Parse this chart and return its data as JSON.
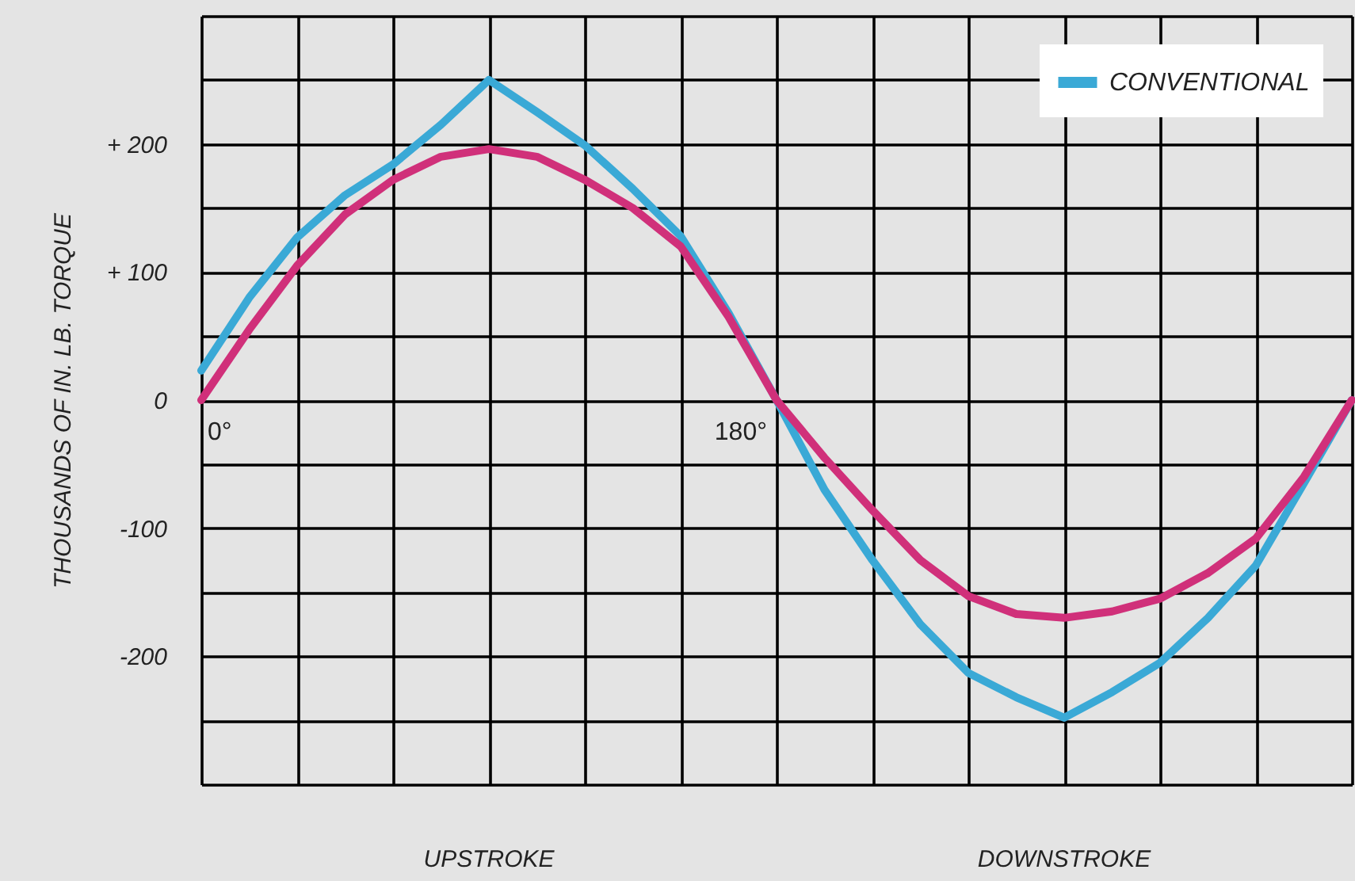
{
  "chart_data": {
    "type": "line",
    "ylabel": "THOUSANDS OF IN. LB. TORQUE",
    "categories": [
      null,
      null,
      null,
      null,
      null,
      null,
      null,
      null,
      null,
      null,
      null,
      null,
      null,
      null,
      null,
      null,
      null,
      null,
      null,
      null,
      null,
      null,
      null,
      null,
      null
    ],
    "series": [
      {
        "name": "CONVENTIONAL",
        "color": "#3aa9d6",
        "values": [
          23,
          80,
          127,
          160,
          184,
          215,
          250,
          225,
          199,
          165,
          128,
          68,
          0,
          -70,
          -125,
          -175,
          -213,
          -232,
          -248,
          -228,
          -205,
          -170,
          -129,
          -65,
          0
        ]
      },
      {
        "color": "#d0307a",
        "values": [
          0,
          55,
          105,
          145,
          172,
          190,
          196,
          190,
          172,
          150,
          120,
          65,
          0,
          -45,
          -86,
          -125,
          -153,
          -167,
          -170,
          -165,
          -155,
          -135,
          -108,
          -60,
          0
        ]
      }
    ],
    "ylim": [
      -300,
      300
    ],
    "yticks": [
      {
        "value": -300,
        "label": null
      },
      {
        "value": -250,
        "label": null
      },
      {
        "value": -200,
        "label": "-200"
      },
      {
        "value": -150,
        "label": null
      },
      {
        "value": -100,
        "label": "-100"
      },
      {
        "value": -50,
        "label": null
      },
      {
        "value": 0,
        "label": "0"
      },
      {
        "value": 50,
        "label": null
      },
      {
        "value": 100,
        "label": "+ 100"
      },
      {
        "value": 150,
        "label": null
      },
      {
        "value": 200,
        "label": "+ 200"
      },
      {
        "value": 250,
        "label": null
      },
      {
        "value": 300,
        "label": null
      }
    ],
    "annotations": [
      "0°",
      "180°",
      "UPSTROKE",
      "DOWNSTROKE"
    ],
    "grid": true,
    "legend": "top right",
    "tick_labels": "y",
    "line_style": "solid",
    "marker": "none"
  }
}
